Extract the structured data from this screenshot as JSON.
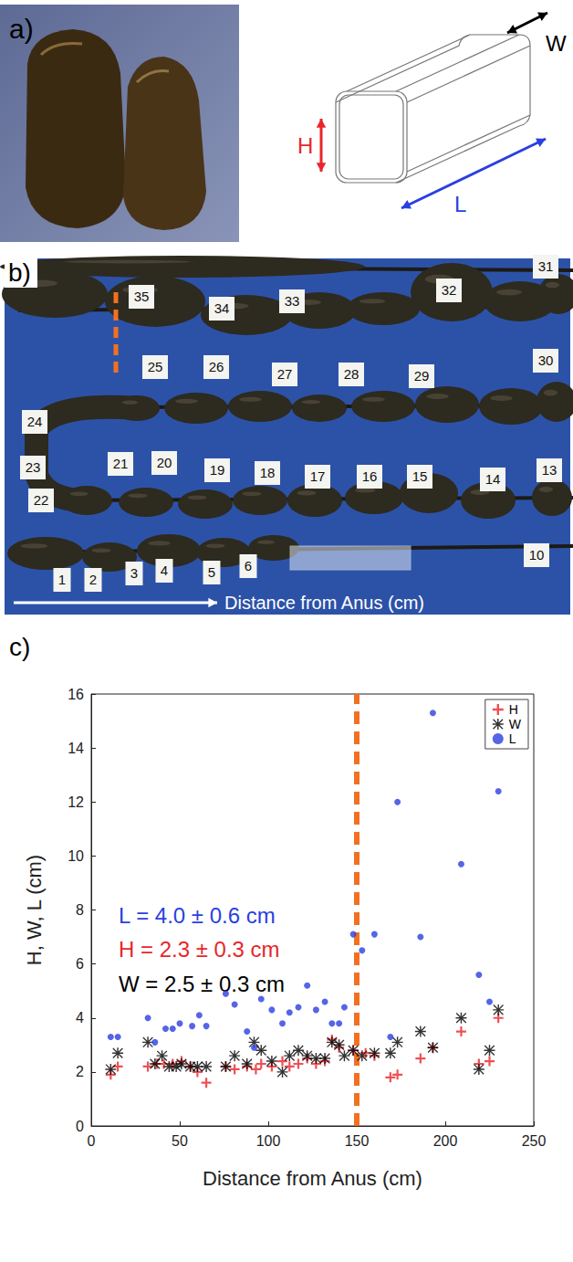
{
  "panel_a": {
    "label": "a)",
    "diagram_labels": {
      "height": "H",
      "width": "W",
      "length": "L"
    }
  },
  "panel_b": {
    "label": "b)",
    "segment_labels": [
      "35",
      "34",
      "33",
      "32",
      "31",
      "30",
      "25",
      "26",
      "27",
      "28",
      "29",
      "24",
      "23",
      "22",
      "21",
      "20",
      "19",
      "18",
      "17",
      "16",
      "15",
      "14",
      "13",
      "1",
      "2",
      "3",
      "4",
      "5",
      "6",
      "10"
    ],
    "arrow_label": "Distance from Anus (cm)"
  },
  "chart_data": {
    "label": "c)",
    "type": "scatter",
    "xlabel": "Distance from Anus (cm)",
    "ylabel": "H, W, L (cm)",
    "xlim": [
      0,
      250
    ],
    "xticks": [
      0,
      50,
      100,
      150,
      200,
      250
    ],
    "ylim": [
      0,
      16
    ],
    "yticks": [
      0,
      2,
      4,
      6,
      8,
      10,
      12,
      14,
      16
    ],
    "grid": false,
    "legend": "upper right",
    "series": [
      {
        "name": "H",
        "color": "#e8262b",
        "marker": "plus",
        "x": [
          11,
          15,
          32,
          37,
          41,
          46,
          51,
          56,
          60,
          65,
          76,
          81,
          88,
          93,
          96,
          102,
          108,
          112,
          117,
          122,
          127,
          132,
          136,
          140,
          148,
          155,
          160,
          169,
          173,
          186,
          193,
          209,
          219,
          225,
          230
        ],
        "values": [
          1.9,
          2.2,
          2.2,
          2.3,
          2.3,
          2.3,
          2.4,
          2.2,
          2.0,
          1.6,
          2.2,
          2.1,
          2.2,
          2.1,
          2.3,
          2.2,
          2.4,
          2.2,
          2.3,
          2.5,
          2.3,
          2.4,
          3.2,
          2.9,
          2.8,
          2.7,
          2.6,
          1.8,
          1.9,
          2.5,
          2.9,
          3.5,
          2.3,
          2.4,
          4.0
        ]
      },
      {
        "name": "W",
        "color": "#000000",
        "marker": "asterisk",
        "x": [
          11,
          15,
          32,
          36,
          40,
          44,
          48,
          51,
          56,
          60,
          65,
          76,
          81,
          88,
          92,
          96,
          102,
          108,
          112,
          117,
          122,
          127,
          132,
          136,
          140,
          143,
          148,
          153,
          160,
          169,
          173,
          186,
          193,
          209,
          219,
          225,
          230
        ],
        "values": [
          2.1,
          2.7,
          3.1,
          2.3,
          2.6,
          2.2,
          2.2,
          2.3,
          2.2,
          2.2,
          2.2,
          2.2,
          2.6,
          2.3,
          3.1,
          2.8,
          2.4,
          2.0,
          2.6,
          2.8,
          2.6,
          2.5,
          2.5,
          3.1,
          3.0,
          2.6,
          2.8,
          2.6,
          2.7,
          2.7,
          3.1,
          3.5,
          2.9,
          4.0,
          2.1,
          2.8,
          4.3
        ]
      },
      {
        "name": "L",
        "color": "#2a3fe0",
        "marker": "circle",
        "x": [
          11,
          15,
          32,
          36,
          42,
          46,
          50,
          57,
          61,
          65,
          76,
          81,
          88,
          92,
          96,
          102,
          108,
          112,
          117,
          122,
          127,
          132,
          136,
          140,
          143,
          148,
          153,
          160,
          169,
          173,
          186,
          193,
          209,
          219,
          225,
          230
        ],
        "values": [
          3.3,
          3.3,
          4.0,
          3.1,
          3.6,
          3.6,
          3.8,
          3.7,
          4.1,
          3.7,
          4.9,
          4.5,
          3.5,
          2.9,
          4.7,
          4.3,
          3.8,
          4.2,
          4.4,
          5.2,
          4.3,
          4.6,
          3.8,
          3.8,
          4.4,
          7.1,
          6.5,
          7.1,
          3.3,
          12.0,
          7.0,
          15.3,
          9.7,
          5.6,
          4.6,
          12.4
        ]
      }
    ],
    "annotations": [
      {
        "text": "L = 4.0 ± 0.6 cm",
        "color": "#2a3fe0"
      },
      {
        "text": "H = 2.3 ± 0.3 cm",
        "color": "#e8262b"
      },
      {
        "text": "W = 2.5 ± 0.3 cm",
        "color": "#000000"
      }
    ],
    "reference_line": {
      "x": 150,
      "color": "#f37021",
      "line_style": "dashed"
    }
  }
}
